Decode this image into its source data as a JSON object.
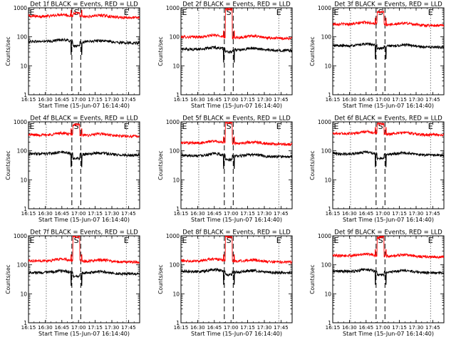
{
  "chart_data": [
    {
      "type": "line",
      "title": "Det 1f BLACK = Events, RED = LLD",
      "xlabel": "Start Time (15-Jun-07 16:14:40)",
      "ylabel": "Counts/sec",
      "yscale": "log",
      "ylim": [
        1,
        1000
      ],
      "xlim": [
        "16:15",
        "17:55"
      ],
      "xticks": [
        "16:15",
        "16:30",
        "16:45",
        "17:00",
        "17:15",
        "17:30",
        "17:45"
      ],
      "yticks": [
        "1",
        "10",
        "100",
        "1000"
      ],
      "annotations": [
        {
          "text": "E",
          "x": "16:16"
        },
        {
          "text": "S",
          "x": "16:58"
        },
        {
          "text": "E",
          "x": "17:43"
        }
      ],
      "series": [
        {
          "color": "#ff0000",
          "baseline": 520,
          "gap_level": 650
        },
        {
          "color": "#000000",
          "baseline": 70,
          "gap_level": 48
        }
      ]
    },
    {
      "type": "line",
      "title": "Det 2f BLACK = Events, RED = LLD",
      "xlabel": "Start Time (15-Jun-07 16:14:40)",
      "ylabel": "Counts/sec",
      "yscale": "log",
      "ylim": [
        1,
        1000
      ],
      "xlim": [
        "16:15",
        "17:55"
      ],
      "xticks": [
        "16:15",
        "16:30",
        "16:45",
        "17:00",
        "17:15",
        "17:30",
        "17:45"
      ],
      "yticks": [
        "1",
        "10",
        "100",
        "1000"
      ],
      "annotations": [
        {
          "text": "E",
          "x": "16:16"
        },
        {
          "text": "S",
          "x": "16:58"
        },
        {
          "text": "E",
          "x": "17:43"
        }
      ],
      "series": [
        {
          "color": "#ff0000",
          "baseline": 100,
          "gap_level": 900
        },
        {
          "color": "#000000",
          "baseline": 38,
          "gap_level": 30
        }
      ]
    },
    {
      "type": "line",
      "title": "Det 3f BLACK = Events, RED = LLD",
      "xlabel": "Start Time (15-Jun-07 16:14:40)",
      "ylabel": "Counts/sec",
      "yscale": "log",
      "ylim": [
        1,
        1000
      ],
      "xlim": [
        "16:15",
        "17:55"
      ],
      "xticks": [
        "16:15",
        "16:30",
        "16:45",
        "17:00",
        "17:15",
        "17:30",
        "17:45"
      ],
      "yticks": [
        "1",
        "10",
        "100",
        "1000"
      ],
      "annotations": [
        {
          "text": "E",
          "x": "16:16"
        },
        {
          "text": "S",
          "x": "16:58"
        },
        {
          "text": "E",
          "x": "17:43"
        }
      ],
      "series": [
        {
          "color": "#ff0000",
          "baseline": 280,
          "gap_level": 700
        },
        {
          "color": "#000000",
          "baseline": 50,
          "gap_level": 40
        }
      ]
    },
    {
      "type": "line",
      "title": "Det 4f BLACK = Events, RED = LLD",
      "xlabel": "Start Time (15-Jun-07 16:14:40)",
      "ylabel": "Counts/sec",
      "yscale": "log",
      "ylim": [
        1,
        1000
      ],
      "xlim": [
        "16:15",
        "17:55"
      ],
      "xticks": [
        "16:15",
        "16:30",
        "16:45",
        "17:00",
        "17:15",
        "17:30",
        "17:45"
      ],
      "yticks": [
        "1",
        "10",
        "100",
        "1000"
      ],
      "annotations": [
        {
          "text": "E",
          "x": "16:16"
        },
        {
          "text": "S",
          "x": "16:58"
        },
        {
          "text": "E",
          "x": "17:43"
        }
      ],
      "series": [
        {
          "color": "#ff0000",
          "baseline": 360,
          "gap_level": 800
        },
        {
          "color": "#000000",
          "baseline": 80,
          "gap_level": 55
        }
      ]
    },
    {
      "type": "line",
      "title": "Det 5f BLACK = Events, RED = LLD",
      "xlabel": "Start Time (15-Jun-07 16:14:40)",
      "ylabel": "Counts/sec",
      "yscale": "log",
      "ylim": [
        1,
        1000
      ],
      "xlim": [
        "16:15",
        "17:55"
      ],
      "xticks": [
        "16:15",
        "16:30",
        "16:45",
        "17:00",
        "17:15",
        "17:30",
        "17:45"
      ],
      "yticks": [
        "1",
        "10",
        "100",
        "1000"
      ],
      "annotations": [
        {
          "text": "E",
          "x": "16:16"
        },
        {
          "text": "S",
          "x": "16:58"
        },
        {
          "text": "E",
          "x": "17:43"
        }
      ],
      "series": [
        {
          "color": "#ff0000",
          "baseline": 190,
          "gap_level": 950
        },
        {
          "color": "#000000",
          "baseline": 70,
          "gap_level": 50
        }
      ]
    },
    {
      "type": "line",
      "title": "Det 6f BLACK = Events, RED = LLD",
      "xlabel": "Start Time (15-Jun-07 16:14:40)",
      "ylabel": "Counts/sec",
      "yscale": "log",
      "ylim": [
        1,
        1000
      ],
      "xlim": [
        "16:15",
        "17:55"
      ],
      "xticks": [
        "16:15",
        "16:30",
        "16:45",
        "17:00",
        "17:15",
        "17:30",
        "17:45"
      ],
      "yticks": [
        "1",
        "10",
        "100",
        "1000"
      ],
      "annotations": [
        {
          "text": "E",
          "x": "16:16"
        },
        {
          "text": "S",
          "x": "16:58"
        },
        {
          "text": "E",
          "x": "17:43"
        }
      ],
      "series": [
        {
          "color": "#ff0000",
          "baseline": 400,
          "gap_level": 850
        },
        {
          "color": "#000000",
          "baseline": 80,
          "gap_level": 55
        }
      ]
    },
    {
      "type": "line",
      "title": "Det 7f BLACK = Events, RED = LLD",
      "xlabel": "Start Time (15-Jun-07 16:14:40)",
      "ylabel": "Counts/sec",
      "yscale": "log",
      "ylim": [
        1,
        1000
      ],
      "xlim": [
        "16:15",
        "17:55"
      ],
      "xticks": [
        "16:15",
        "16:30",
        "16:45",
        "17:00",
        "17:15",
        "17:30",
        "17:45"
      ],
      "yticks": [
        "1",
        "10",
        "100",
        "1000"
      ],
      "annotations": [
        {
          "text": "E",
          "x": "16:16"
        },
        {
          "text": "S",
          "x": "16:58"
        },
        {
          "text": "E",
          "x": "17:43"
        }
      ],
      "series": [
        {
          "color": "#ff0000",
          "baseline": 140,
          "gap_level": 950
        },
        {
          "color": "#000000",
          "baseline": 55,
          "gap_level": 40
        }
      ]
    },
    {
      "type": "line",
      "title": "Det 8f BLACK = Events, RED = LLD",
      "xlabel": "Start Time (15-Jun-07 16:14:40)",
      "ylabel": "Counts/sec",
      "yscale": "log",
      "ylim": [
        1,
        1000
      ],
      "xlim": [
        "16:15",
        "17:55"
      ],
      "xticks": [
        "16:15",
        "16:30",
        "16:45",
        "17:00",
        "17:15",
        "17:30",
        "17:45"
      ],
      "yticks": [
        "1",
        "10",
        "100",
        "1000"
      ],
      "annotations": [
        {
          "text": "E",
          "x": "16:16"
        },
        {
          "text": "S",
          "x": "16:58"
        },
        {
          "text": "E",
          "x": "17:43"
        }
      ],
      "series": [
        {
          "color": "#ff0000",
          "baseline": 140,
          "gap_level": 950
        },
        {
          "color": "#000000",
          "baseline": 60,
          "gap_level": 45
        }
      ]
    },
    {
      "type": "line",
      "title": "Det 9f BLACK = Events, RED = LLD",
      "xlabel": "Start Time (15-Jun-07 16:14:40)",
      "ylabel": "Counts/sec",
      "yscale": "log",
      "ylim": [
        1,
        1000
      ],
      "xlim": [
        "16:15",
        "17:55"
      ],
      "xticks": [
        "16:15",
        "16:30",
        "16:45",
        "17:00",
        "17:15",
        "17:30",
        "17:45"
      ],
      "yticks": [
        "1",
        "10",
        "100",
        "1000"
      ],
      "annotations": [
        {
          "text": "E",
          "x": "16:16"
        },
        {
          "text": "S",
          "x": "16:58"
        },
        {
          "text": "E",
          "x": "17:43"
        }
      ],
      "series": [
        {
          "color": "#ff0000",
          "baseline": 210,
          "gap_level": 900
        },
        {
          "color": "#000000",
          "baseline": 60,
          "gap_level": 45
        }
      ]
    }
  ]
}
